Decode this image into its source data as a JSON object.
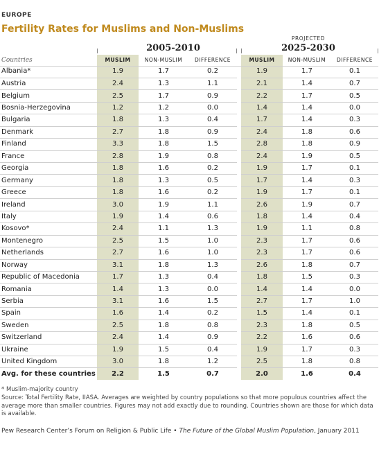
{
  "region": "EUROPE",
  "title": "Fertility Rates for Muslims and Non-Muslims",
  "period1": "2005-2010",
  "period2_prefix": "PROJECTED",
  "period2": "2025-2030",
  "columns": {
    "countries": "Countries",
    "muslim": "MUSLIM",
    "non_muslim": "NON-MUSLIM",
    "difference": "DIFFERENCE"
  },
  "rows": [
    {
      "country": "Albania*",
      "m1": "1.9",
      "n1": "1.7",
      "d1": "0.2",
      "m2": "1.9",
      "n2": "1.7",
      "d2": "0.1"
    },
    {
      "country": "Austria",
      "m1": "2.4",
      "n1": "1.3",
      "d1": "1.1",
      "m2": "2.1",
      "n2": "1.4",
      "d2": "0.7"
    },
    {
      "country": "Belgium",
      "m1": "2.5",
      "n1": "1.7",
      "d1": "0.9",
      "m2": "2.2",
      "n2": "1.7",
      "d2": "0.5"
    },
    {
      "country": "Bosnia-Herzegovina",
      "m1": "1.2",
      "n1": "1.2",
      "d1": "0.0",
      "m2": "1.4",
      "n2": "1.4",
      "d2": "0.0"
    },
    {
      "country": "Bulgaria",
      "m1": "1.8",
      "n1": "1.3",
      "d1": "0.4",
      "m2": "1.7",
      "n2": "1.4",
      "d2": "0.3"
    },
    {
      "country": "Denmark",
      "m1": "2.7",
      "n1": "1.8",
      "d1": "0.9",
      "m2": "2.4",
      "n2": "1.8",
      "d2": "0.6"
    },
    {
      "country": "Finland",
      "m1": "3.3",
      "n1": "1.8",
      "d1": "1.5",
      "m2": "2.8",
      "n2": "1.8",
      "d2": "0.9"
    },
    {
      "country": "France",
      "m1": "2.8",
      "n1": "1.9",
      "d1": "0.8",
      "m2": "2.4",
      "n2": "1.9",
      "d2": "0.5"
    },
    {
      "country": "Georgia",
      "m1": "1.8",
      "n1": "1.6",
      "d1": "0.2",
      "m2": "1.9",
      "n2": "1.7",
      "d2": "0.1"
    },
    {
      "country": "Germany",
      "m1": "1.8",
      "n1": "1.3",
      "d1": "0.5",
      "m2": "1.7",
      "n2": "1.4",
      "d2": "0.3"
    },
    {
      "country": "Greece",
      "m1": "1.8",
      "n1": "1.6",
      "d1": "0.2",
      "m2": "1.9",
      "n2": "1.7",
      "d2": "0.1"
    },
    {
      "country": "Ireland",
      "m1": "3.0",
      "n1": "1.9",
      "d1": "1.1",
      "m2": "2.6",
      "n2": "1.9",
      "d2": "0.7"
    },
    {
      "country": "Italy",
      "m1": "1.9",
      "n1": "1.4",
      "d1": "0.6",
      "m2": "1.8",
      "n2": "1.4",
      "d2": "0.4"
    },
    {
      "country": "Kosovo*",
      "m1": "2.4",
      "n1": "1.1",
      "d1": "1.3",
      "m2": "1.9",
      "n2": "1.1",
      "d2": "0.8"
    },
    {
      "country": "Montenegro",
      "m1": "2.5",
      "n1": "1.5",
      "d1": "1.0",
      "m2": "2.3",
      "n2": "1.7",
      "d2": "0.6"
    },
    {
      "country": "Netherlands",
      "m1": "2.7",
      "n1": "1.6",
      "d1": "1.0",
      "m2": "2.3",
      "n2": "1.7",
      "d2": "0.6"
    },
    {
      "country": "Norway",
      "m1": "3.1",
      "n1": "1.8",
      "d1": "1.3",
      "m2": "2.6",
      "n2": "1.8",
      "d2": "0.7"
    },
    {
      "country": "Republic of Macedonia",
      "m1": "1.7",
      "n1": "1.3",
      "d1": "0.4",
      "m2": "1.8",
      "n2": "1.5",
      "d2": "0.3"
    },
    {
      "country": "Romania",
      "m1": "1.4",
      "n1": "1.3",
      "d1": "0.0",
      "m2": "1.4",
      "n2": "1.4",
      "d2": "0.0"
    },
    {
      "country": "Serbia",
      "m1": "3.1",
      "n1": "1.6",
      "d1": "1.5",
      "m2": "2.7",
      "n2": "1.7",
      "d2": "1.0"
    },
    {
      "country": "Spain",
      "m1": "1.6",
      "n1": "1.4",
      "d1": "0.2",
      "m2": "1.5",
      "n2": "1.4",
      "d2": "0.1"
    },
    {
      "country": "Sweden",
      "m1": "2.5",
      "n1": "1.8",
      "d1": "0.8",
      "m2": "2.3",
      "n2": "1.8",
      "d2": "0.5"
    },
    {
      "country": "Switzerland",
      "m1": "2.4",
      "n1": "1.4",
      "d1": "0.9",
      "m2": "2.2",
      "n2": "1.6",
      "d2": "0.6"
    },
    {
      "country": "Ukraine",
      "m1": "1.9",
      "n1": "1.5",
      "d1": "0.4",
      "m2": "1.9",
      "n2": "1.7",
      "d2": "0.3"
    },
    {
      "country": "United Kingdom",
      "m1": "3.0",
      "n1": "1.8",
      "d1": "1.2",
      "m2": "2.5",
      "n2": "1.8",
      "d2": "0.8"
    }
  ],
  "average": {
    "country": "Avg. for these countries",
    "m1": "2.2",
    "n1": "1.5",
    "d1": "0.7",
    "m2": "2.0",
    "n2": "1.6",
    "d2": "0.4"
  },
  "footnote": "* Muslim-majority country",
  "source": "Source: Total Fertility Rate, IIASA. Averages are weighted by country populations so that more populous countries affect the average more than smaller countries. Figures may not add exactly due to rounding. Countries shown are those for which data is available.",
  "credit_org": "Pew Research Center’s Forum on Religion & Public Life •",
  "credit_pub": "The Future of the Global Muslim Population",
  "credit_date": ", January 2011",
  "colors": {
    "accent": "#c08a1e",
    "shade": "#dfe0c7"
  }
}
